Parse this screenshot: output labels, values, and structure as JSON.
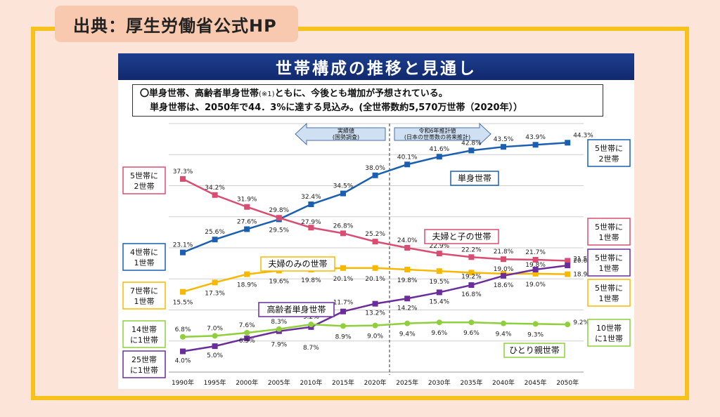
{
  "source_badge": "出典：厚生労働省公式HP",
  "slide_title": "世帯構成の推移と見通し",
  "summary": {
    "line1": "〇単身世帯、高齢者単身世帯",
    "note": "(※1)",
    "line1b": "ともに、今後とも増加が予想されている。",
    "line2": "単身世帯は、2050年で44．3%に達する見込み。(全世帯数約5,570万世帯（2020年））"
  },
  "arrows": {
    "actual_line1": "実績値",
    "actual_line2": "(国勢調査)",
    "projection_line1": "令和6年推計値",
    "projection_line2": "(日本の世帯数の将来推計)"
  },
  "chart_data": {
    "type": "line",
    "categories": [
      "1990年",
      "1995年",
      "2000年",
      "2005年",
      "2010年",
      "2015年",
      "2020年",
      "2025年",
      "2030年",
      "2035年",
      "2040年",
      "2045年",
      "2050年"
    ],
    "ylim": [
      0,
      48
    ],
    "series": [
      {
        "name": "単身世帯",
        "color": "#1a5fb0",
        "marker": "square",
        "values": [
          23.1,
          25.6,
          27.6,
          29.5,
          32.4,
          34.5,
          38.0,
          40.1,
          41.6,
          42.8,
          43.5,
          43.9,
          44.3
        ],
        "labels": [
          "23.1%",
          "25.6%",
          "27.6%",
          "29.5%",
          "32.4%",
          "34.5%",
          "38.0%",
          "40.1%",
          "41.6%",
          "42.8%",
          "43.5%",
          "43.9%",
          "44.3%"
        ],
        "label_dy": [
          -8,
          -8,
          -8,
          18,
          -8,
          -8,
          -8,
          -8,
          -8,
          -8,
          -8,
          -8,
          -8
        ]
      },
      {
        "name": "夫婦と子の世帯",
        "color": "#d94d72",
        "marker": "square",
        "values": [
          37.3,
          34.2,
          31.9,
          29.8,
          27.9,
          26.8,
          25.2,
          24.0,
          22.9,
          22.2,
          21.8,
          21.7,
          21.5
        ],
        "labels": [
          "37.3%",
          "34.2%",
          "31.9%",
          "29.8%",
          "27.9%",
          "26.8%",
          "25.2%",
          "24.0%",
          "22.9%",
          "22.2%",
          "21.8%",
          "21.7%",
          "21.5%"
        ],
        "label_dy": [
          -8,
          -8,
          -8,
          -8,
          -5,
          -8,
          -8,
          -8,
          -8,
          -8,
          -8,
          -8,
          0
        ]
      },
      {
        "name": "夫婦のみの世帯",
        "color": "#f8b800",
        "marker": "square",
        "values": [
          15.5,
          17.3,
          18.9,
          19.6,
          19.8,
          20.1,
          20.1,
          19.8,
          19.5,
          19.2,
          19.0,
          19.0,
          18.9
        ],
        "labels": [
          "15.5%",
          "17.3%",
          "18.9%",
          "19.6%",
          "19.8%",
          "20.1%",
          "20.1%",
          "19.8%",
          "19.5%",
          "19.2%",
          "19.0%",
          "19.0%",
          "18.9%"
        ],
        "label_dy": [
          18,
          18,
          18,
          18,
          18,
          18,
          18,
          18,
          18,
          8,
          -4,
          18,
          3
        ]
      },
      {
        "name": "高齢者単身世帯",
        "color": "#6a2d9a",
        "marker": "square",
        "values": [
          4.0,
          5.0,
          6.5,
          7.9,
          8.7,
          11.7,
          13.2,
          14.2,
          15.4,
          16.8,
          18.6,
          19.8,
          20.6
        ],
        "labels": [
          "4.0%",
          "5.0%",
          "6.5%",
          "7.9%",
          "8.7%",
          "11.7%",
          "13.2%",
          "14.2%",
          "15.4%",
          "16.8%",
          "18.6%",
          "19.8%",
          "20.6%"
        ],
        "label_dy": [
          16,
          16,
          6,
          22,
          32,
          -10,
          16,
          16,
          16,
          16,
          16,
          -4,
          -4
        ]
      },
      {
        "name": "ひとり親世帯",
        "color": "#8fcf3c",
        "marker": "circle",
        "values": [
          6.8,
          7.0,
          7.6,
          8.3,
          9.2,
          8.9,
          9.0,
          9.4,
          9.6,
          9.6,
          9.4,
          9.3,
          9.2
        ],
        "labels": [
          "6.8%",
          "7.0%",
          "7.6%",
          "8.3%",
          "9.2%",
          "8.9%",
          "9.0%",
          "9.4%",
          "9.6%",
          "9.6%",
          "9.4%",
          "9.3%",
          "9.2%"
        ],
        "label_dy": [
          -8,
          -8,
          -8,
          -8,
          -8,
          18,
          18,
          18,
          18,
          18,
          18,
          18,
          0
        ]
      }
    ],
    "series_labels": {
      "single": "単身世帯",
      "couple_children": "夫婦と子の世帯",
      "couple_only": "夫婦のみの世帯",
      "elderly_single": "高齢者単身世帯",
      "single_parent": "ひとり親世帯"
    },
    "ratio_boxes_left": [
      {
        "line1": "5世帯に",
        "line2": "2世帯",
        "color": "#d94d72"
      },
      {
        "line1": "4世帯に",
        "line2": "1世帯",
        "color": "#1a5fb0"
      },
      {
        "line1": "7世帯に",
        "line2": "1世帯",
        "color": "#f8b800"
      },
      {
        "line1": "14世帯",
        "line2": "に1世帯",
        "color": "#8fcf3c"
      },
      {
        "line1": "25世帯",
        "line2": "に1世帯",
        "color": "#6a2d9a"
      }
    ],
    "ratio_boxes_right": [
      {
        "line1": "5世帯に",
        "line2": "2世帯",
        "color": "#1a5fb0"
      },
      {
        "line1": "5世帯に",
        "line2": "1世帯",
        "color": "#d94d72"
      },
      {
        "line1": "5世帯に",
        "line2": "1世帯",
        "color": "#6a2d9a"
      },
      {
        "line1": "5世帯に",
        "line2": "1世帯",
        "color": "#f8b800"
      },
      {
        "line1": "10世帯",
        "line2": "に1世帯",
        "color": "#8fcf3c"
      }
    ]
  },
  "colors": {
    "frame": "#f8c21c",
    "background": "#fde4d8",
    "title_bar": "#1d3f8f"
  }
}
